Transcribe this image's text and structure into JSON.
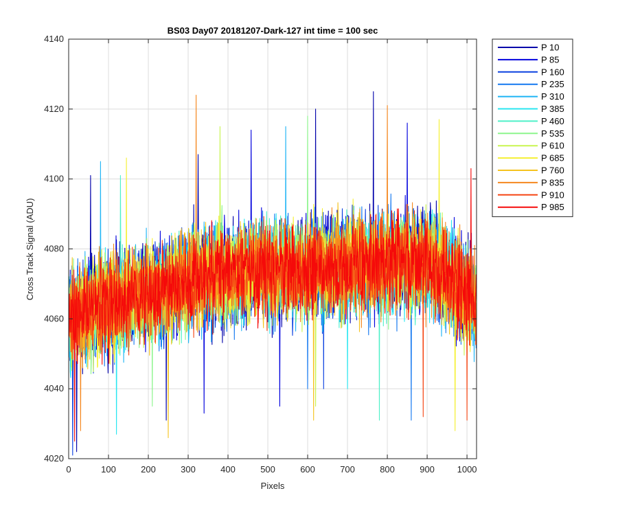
{
  "chart_data": {
    "type": "line",
    "title": "BS03 Day07 20181207-Dark-127 int time = 100 sec",
    "xlabel": "Pixels",
    "ylabel": "Cross Track Signal (ADU)",
    "xlim": [
      0,
      1024
    ],
    "ylim": [
      4020,
      4140
    ],
    "xticks": [
      0,
      100,
      200,
      300,
      400,
      500,
      600,
      700,
      800,
      900,
      1000
    ],
    "yticks": [
      4020,
      4040,
      4060,
      4080,
      4100,
      4120,
      4140
    ],
    "grid": true,
    "legend_position": "outside-top-right",
    "n_points": 1024,
    "noise_note_visible": false,
    "trend": {
      "x": [
        0,
        100,
        200,
        300,
        400,
        500,
        600,
        700,
        800,
        900,
        1024
      ],
      "y": [
        4060,
        4064,
        4067,
        4071,
        4073,
        4074,
        4074,
        4075,
        4076,
        4077,
        4065
      ]
    },
    "series": [
      {
        "name": "P 10",
        "color": "#0000aa",
        "spread": 22,
        "spikes": [
          {
            "x": 765,
            "y": 4125
          },
          {
            "x": 620,
            "y": 4120
          },
          {
            "x": 55,
            "y": 4101
          },
          {
            "x": 325,
            "y": 4107
          },
          {
            "x": 20,
            "y": 4022
          },
          {
            "x": 245,
            "y": 4031
          }
        ]
      },
      {
        "name": "P 85",
        "color": "#0000dd",
        "spread": 22,
        "spikes": [
          {
            "x": 340,
            "y": 4033
          },
          {
            "x": 530,
            "y": 4035
          },
          {
            "x": 850,
            "y": 4116
          },
          {
            "x": 458,
            "y": 4114
          }
        ]
      },
      {
        "name": "P 160",
        "color": "#0a40e0",
        "spread": 21,
        "spikes": [
          {
            "x": 10,
            "y": 4021
          },
          {
            "x": 640,
            "y": 4040
          }
        ]
      },
      {
        "name": "P 235",
        "color": "#1478f0",
        "spread": 21,
        "spikes": [
          {
            "x": 600,
            "y": 4040
          },
          {
            "x": 860,
            "y": 4031
          }
        ]
      },
      {
        "name": "P 310",
        "color": "#1eb4f5",
        "spread": 21,
        "spikes": [
          {
            "x": 545,
            "y": 4115
          },
          {
            "x": 80,
            "y": 4105
          }
        ]
      },
      {
        "name": "P 385",
        "color": "#28e6f0",
        "spread": 20,
        "spikes": [
          {
            "x": 120,
            "y": 4027
          },
          {
            "x": 700,
            "y": 4040
          }
        ]
      },
      {
        "name": "P 460",
        "color": "#4ef0c8",
        "spread": 20,
        "spikes": [
          {
            "x": 780,
            "y": 4031
          },
          {
            "x": 130,
            "y": 4101
          }
        ]
      },
      {
        "name": "P 535",
        "color": "#8cf58c",
        "spread": 20,
        "spikes": [
          {
            "x": 600,
            "y": 4118
          },
          {
            "x": 210,
            "y": 4035
          }
        ]
      },
      {
        "name": "P 610",
        "color": "#c8f550",
        "spread": 20,
        "spikes": [
          {
            "x": 380,
            "y": 4115
          },
          {
            "x": 620,
            "y": 4035
          }
        ]
      },
      {
        "name": "P 685",
        "color": "#f5f032",
        "spread": 20,
        "spikes": [
          {
            "x": 145,
            "y": 4106
          },
          {
            "x": 930,
            "y": 4117
          },
          {
            "x": 970,
            "y": 4028
          }
        ]
      },
      {
        "name": "P 760",
        "color": "#f5c31e",
        "spread": 20,
        "spikes": [
          {
            "x": 615,
            "y": 4031
          },
          {
            "x": 250,
            "y": 4026
          }
        ]
      },
      {
        "name": "P 835",
        "color": "#f5871e",
        "spread": 20,
        "spikes": [
          {
            "x": 320,
            "y": 4124
          },
          {
            "x": 800,
            "y": 4121
          },
          {
            "x": 30,
            "y": 4028
          }
        ]
      },
      {
        "name": "P 910",
        "color": "#f54614",
        "spread": 19,
        "spikes": [
          {
            "x": 890,
            "y": 4032
          },
          {
            "x": 1000,
            "y": 4031
          }
        ]
      },
      {
        "name": "P 985",
        "color": "#f50a0a",
        "spread": 19,
        "spikes": [
          {
            "x": 1010,
            "y": 4103
          },
          {
            "x": 15,
            "y": 4025
          }
        ]
      }
    ]
  }
}
